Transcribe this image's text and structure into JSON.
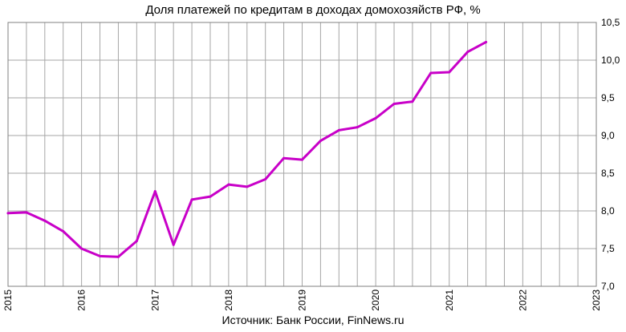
{
  "chart_data": {
    "type": "line",
    "title": "Доля платежей по кредитам в доходах домохозяйств РФ, %",
    "source": "Источник: Банк России, FinNews.ru",
    "x_tick_labels": [
      "2015",
      "2016",
      "2017",
      "2018",
      "2019",
      "2020",
      "2021",
      "2022",
      "2023"
    ],
    "y_tick_labels": [
      "7,0",
      "7,5",
      "8,0",
      "8,5",
      "9,0",
      "9,5",
      "10,0",
      "10,5"
    ],
    "xlim": [
      2015,
      2023
    ],
    "ylim": [
      7.0,
      10.5
    ],
    "grid": true,
    "y_axis_side": "right",
    "series": [
      {
        "color": "#c800c8",
        "x": [
          2015.0,
          2015.25,
          2015.5,
          2015.75,
          2016.0,
          2016.25,
          2016.5,
          2016.75,
          2017.0,
          2017.25,
          2017.5,
          2017.75,
          2018.0,
          2018.25,
          2018.5,
          2018.75,
          2019.0,
          2019.25,
          2019.5,
          2019.75,
          2020.0,
          2020.25,
          2020.5,
          2020.75,
          2021.0,
          2021.25,
          2021.5
        ],
        "values": [
          7.97,
          7.98,
          7.87,
          7.73,
          7.5,
          7.4,
          7.39,
          7.6,
          8.26,
          7.55,
          8.15,
          8.19,
          8.35,
          8.32,
          8.42,
          8.7,
          8.68,
          8.93,
          9.07,
          9.11,
          9.23,
          9.42,
          9.45,
          9.83,
          9.84,
          10.11,
          10.24
        ]
      }
    ]
  }
}
